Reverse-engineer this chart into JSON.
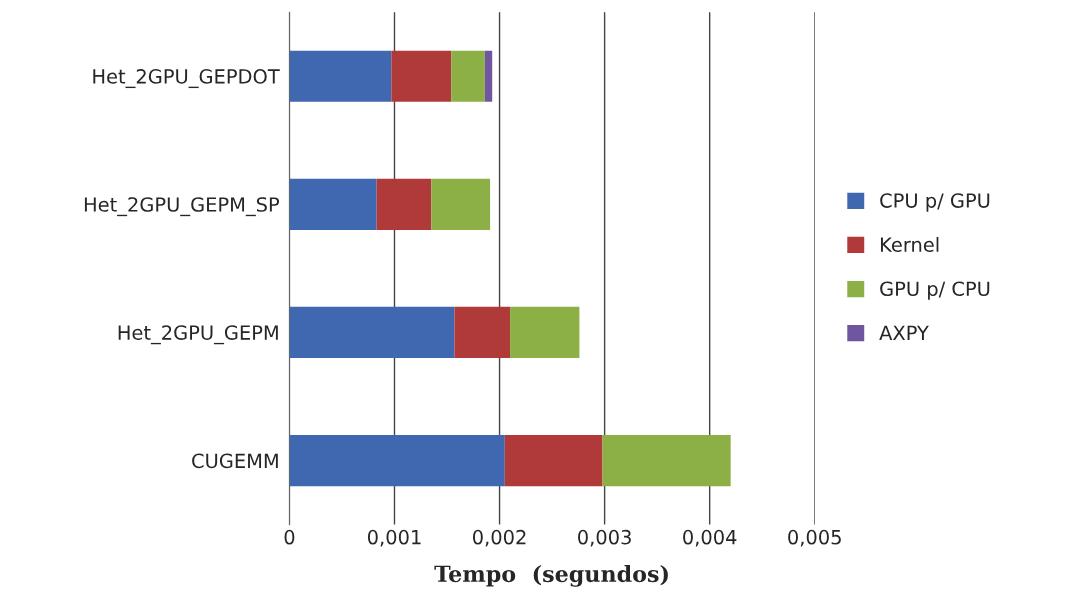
{
  "chart_data": {
    "type": "bar",
    "orientation": "horizontal",
    "stacked": true,
    "xlabel": "Tempo  (segundos)",
    "categories": [
      "Het_2GPU_GEPDOT",
      "Het_2GPU_GEPM_SP",
      "Het_2GPU_GEPM",
      "CUGEMM"
    ],
    "series": [
      {
        "name": "CPU p/ GPU",
        "color": "#4068b0",
        "values": [
          0.00097,
          0.00083,
          0.00157,
          0.00205
        ]
      },
      {
        "name": "Kernel",
        "color": "#b03a3a",
        "values": [
          0.00057,
          0.00052,
          0.00053,
          0.00093
        ]
      },
      {
        "name": "GPU p/ CPU",
        "color": "#8db046",
        "values": [
          0.00032,
          0.00056,
          0.00066,
          0.00122
        ]
      },
      {
        "name": "AXPY",
        "color": "#7055a0",
        "values": [
          7e-05,
          null,
          null,
          null
        ]
      }
    ],
    "xlim": [
      0,
      0.005
    ],
    "xticks": [
      0,
      {
        "value": 0.001,
        "label": "0,001"
      },
      {
        "value": 0.002,
        "label": "0,002"
      },
      {
        "value": 0.003,
        "label": "0,003"
      },
      {
        "value": 0.004,
        "label": "0,004"
      },
      {
        "value": 0.005,
        "label": "0,005"
      }
    ],
    "grid": "x",
    "legend": "right"
  }
}
